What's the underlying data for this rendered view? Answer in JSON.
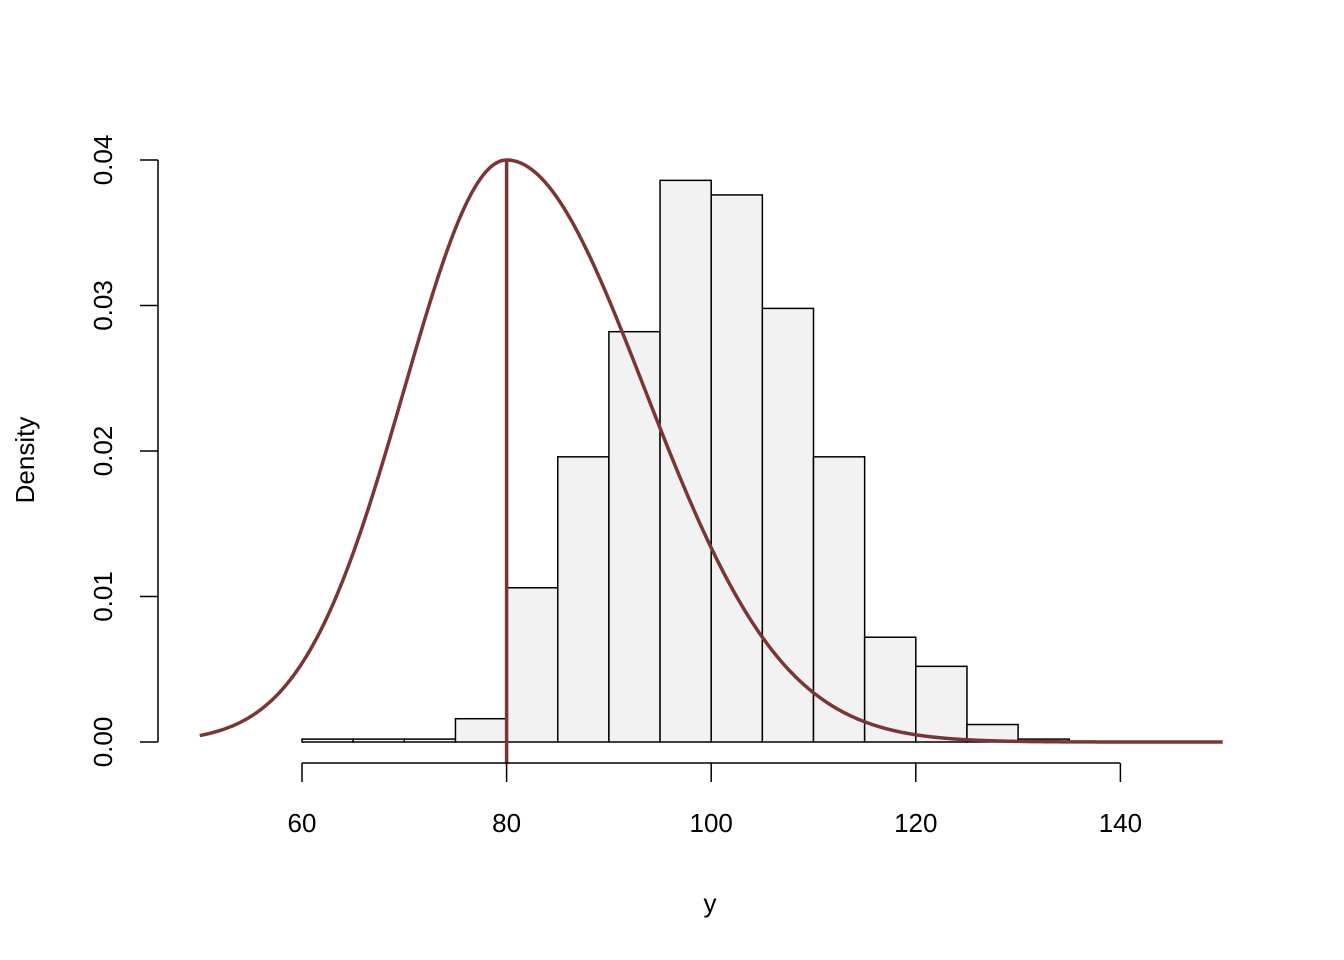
{
  "chart_data": {
    "type": "bar",
    "title": "",
    "xlabel": "y",
    "ylabel": "Density",
    "xlim": [
      50,
      150
    ],
    "ylim": [
      0,
      0.04
    ],
    "x_ticks": [
      {
        "value": 60,
        "label": "60"
      },
      {
        "value": 80,
        "label": "80"
      },
      {
        "value": 100,
        "label": "100"
      },
      {
        "value": 120,
        "label": "120"
      },
      {
        "value": 140,
        "label": "140"
      }
    ],
    "y_ticks": [
      {
        "value": 0.0,
        "label": "0.00"
      },
      {
        "value": 0.01,
        "label": "0.01"
      },
      {
        "value": 0.02,
        "label": "0.02"
      },
      {
        "value": 0.03,
        "label": "0.03"
      },
      {
        "value": 0.04,
        "label": "0.04"
      }
    ],
    "histogram": {
      "bin_edges": [
        60,
        65,
        70,
        75,
        80,
        85,
        90,
        95,
        100,
        105,
        110,
        115,
        120,
        125,
        130,
        135
      ],
      "density": [
        0.0002,
        0.0002,
        0.0002,
        0.0016,
        0.0106,
        0.0196,
        0.0282,
        0.0386,
        0.0376,
        0.0298,
        0.0196,
        0.0072,
        0.0052,
        0.0012,
        0.0002
      ],
      "fill": "#f2f2f2",
      "border": "#000000"
    },
    "curve": {
      "description_type": "truncated density line",
      "x_start": 50,
      "x_end": 150,
      "peak_x": 80,
      "peak_density": 0.04,
      "mean": 80,
      "sd_left": 10,
      "sd_right": 10,
      "right_tail_scale": 0.04,
      "color": "#7a3535"
    },
    "vline": {
      "x": 80,
      "color": "#7a3535"
    },
    "grid": false,
    "legend": "none"
  }
}
